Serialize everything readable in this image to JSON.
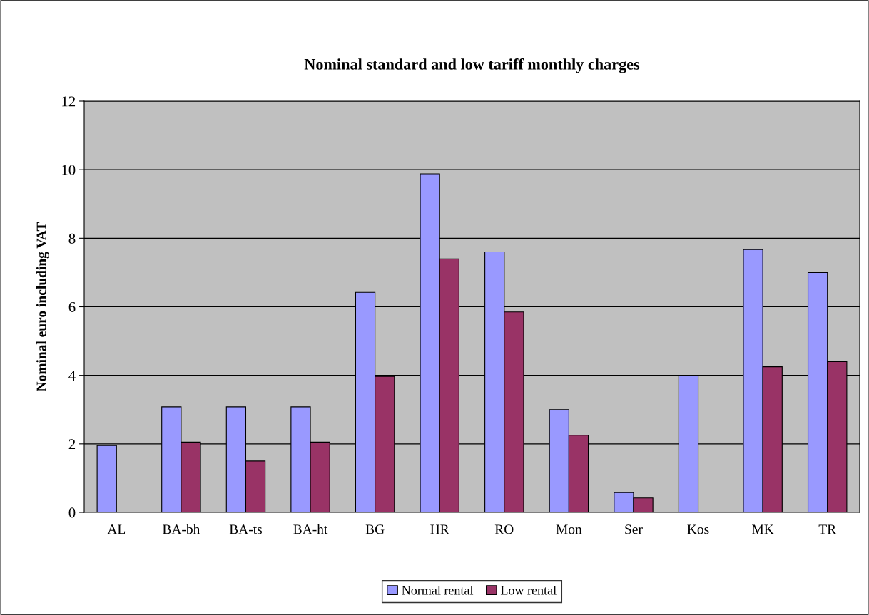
{
  "chart_data": {
    "type": "bar",
    "title": "Nominal standard and low tariff monthly charges",
    "ylabel": "Nominal euro including VAT",
    "categories": [
      "AL",
      "BA-bh",
      "BA-ts",
      "BA-ht",
      "BG",
      "HR",
      "RO",
      "Mon",
      "Ser",
      "Kos",
      "MK",
      "TR"
    ],
    "series": [
      {
        "name": "Normal rental",
        "color": "#9999ff",
        "values": [
          1.95,
          3.08,
          3.08,
          3.08,
          6.42,
          9.88,
          7.6,
          3.0,
          0.58,
          4.0,
          7.67,
          7.0
        ]
      },
      {
        "name": "Low rental",
        "color": "#993366",
        "values": [
          null,
          2.05,
          1.5,
          2.05,
          3.97,
          7.4,
          5.85,
          2.25,
          0.42,
          null,
          4.25,
          4.4
        ]
      }
    ],
    "ylim": [
      0,
      12
    ],
    "yticks": [
      0,
      2,
      4,
      6,
      8,
      10,
      12
    ],
    "grid": "y",
    "legend": "bottom"
  }
}
